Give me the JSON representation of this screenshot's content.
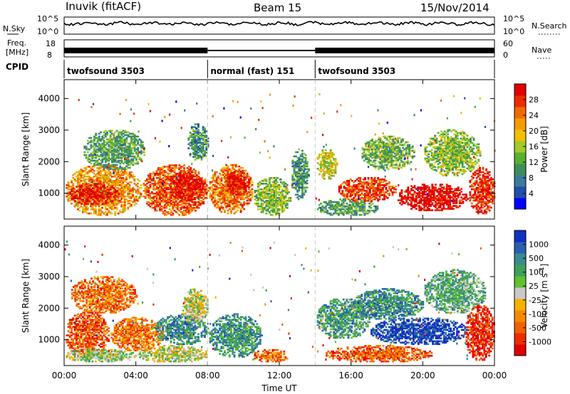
{
  "header": {
    "station": "Inuvik (fitACF)",
    "beam": "Beam 15",
    "date": "15/Nov/2014"
  },
  "status_panels": {
    "nsky_label": "N.Sky",
    "nsearch_label": "N.Search",
    "freq_label_line1": "Freq.",
    "freq_label_line2": "[MHz]",
    "nave_label": "Nave",
    "cpid_label": "CPID",
    "nsky_ticks": [
      "10^5",
      "10^0"
    ],
    "nsearch_ticks": [
      "10^5",
      "10^0"
    ],
    "freq_ticks": [
      "18",
      "8"
    ],
    "nave_ticks": [
      "60",
      "0"
    ],
    "cpid_segments": [
      {
        "label": "twofsound 3503",
        "start": 0,
        "end": 8.0
      },
      {
        "label": "normal (fast) 151",
        "start": 8.0,
        "end": 14.0
      },
      {
        "label": "twofsound 3503",
        "start": 14.0,
        "end": 24.0
      }
    ]
  },
  "chart_data": [
    {
      "type": "heatmap",
      "title": "",
      "xlabel": "",
      "ylabel": "Slant Range [km]",
      "xlim": [
        0,
        24
      ],
      "ylim": [
        180,
        4600
      ],
      "yticks": [
        1000,
        2000,
        3000,
        4000
      ],
      "colorbar": {
        "label": "Power [dB]",
        "ticks": [
          "4",
          "8",
          "12",
          "16",
          "20",
          "24",
          "28"
        ],
        "colors": [
          "#0000ff",
          "#1f4fa8",
          "#3a7a9e",
          "#3c8f5a",
          "#57b02f",
          "#a3c82a",
          "#f0c000",
          "#f59a00",
          "#f06a00",
          "#ee2a00",
          "#e00000"
        ]
      },
      "regions": [
        {
          "x0": 0.0,
          "x1": 4.3,
          "y0": 250,
          "y1": 1900,
          "level": 0.7
        },
        {
          "x0": 0.2,
          "x1": 3.0,
          "y0": 600,
          "y1": 1300,
          "level": 0.95
        },
        {
          "x0": 1.0,
          "x1": 4.5,
          "y0": 1700,
          "y1": 3000,
          "level": 0.35
        },
        {
          "x0": 4.3,
          "x1": 8.0,
          "y0": 250,
          "y1": 1900,
          "level": 0.8
        },
        {
          "x0": 5.8,
          "x1": 7.8,
          "y0": 700,
          "y1": 1700,
          "level": 0.95
        },
        {
          "x0": 6.8,
          "x1": 8.0,
          "y0": 2000,
          "y1": 3200,
          "level": 0.3
        },
        {
          "x0": 8.0,
          "x1": 10.5,
          "y0": 300,
          "y1": 1900,
          "level": 0.75
        },
        {
          "x0": 9.0,
          "x1": 10.3,
          "y0": 900,
          "y1": 1700,
          "level": 0.95
        },
        {
          "x0": 10.5,
          "x1": 12.6,
          "y0": 250,
          "y1": 1500,
          "level": 0.45
        },
        {
          "x0": 12.6,
          "x1": 13.6,
          "y0": 800,
          "y1": 2400,
          "level": 0.3
        },
        {
          "x0": 14.0,
          "x1": 15.2,
          "y0": 1400,
          "y1": 2400,
          "level": 0.55
        },
        {
          "x0": 14.0,
          "x1": 17.5,
          "y0": 250,
          "y1": 800,
          "level": 0.35
        },
        {
          "x0": 15.2,
          "x1": 18.5,
          "y0": 700,
          "y1": 1500,
          "level": 0.85
        },
        {
          "x0": 16.5,
          "x1": 19.5,
          "y0": 1700,
          "y1": 2800,
          "level": 0.4
        },
        {
          "x0": 18.5,
          "x1": 22.5,
          "y0": 400,
          "y1": 1300,
          "level": 0.98
        },
        {
          "x0": 20.0,
          "x1": 23.2,
          "y0": 1500,
          "y1": 3000,
          "level": 0.45
        },
        {
          "x0": 22.5,
          "x1": 24.0,
          "y0": 300,
          "y1": 1800,
          "level": 0.9
        }
      ]
    },
    {
      "type": "heatmap",
      "title": "",
      "xlabel": "Time UT",
      "ylabel": "Slant Range [km]",
      "xlim": [
        0,
        24
      ],
      "ylim": [
        180,
        4600
      ],
      "xticks": [
        "00:00",
        "04:00",
        "08:00",
        "12:00",
        "16:00",
        "20:00",
        "00:00"
      ],
      "yticks": [
        1000,
        2000,
        3000,
        4000
      ],
      "colorbar": {
        "label": "Velocity [m s^-1]",
        "ticks": [
          "1000",
          "500",
          "100",
          "25",
          "-25",
          "-100",
          "-500",
          "-1000"
        ],
        "colors": [
          "#1030c0",
          "#2a5fb0",
          "#3a8a90",
          "#3fa05a",
          "#60c030",
          "#c8c8c8",
          "#f5b000",
          "#f58a00",
          "#f06000",
          "#ee2a00",
          "#e00000"
        ]
      },
      "regions": [
        {
          "x0": 0.0,
          "x1": 2.5,
          "y0": 400,
          "y1": 1900,
          "level": 0.8
        },
        {
          "x0": 0.3,
          "x1": 4.0,
          "y0": 1800,
          "y1": 3000,
          "level": 0.75
        },
        {
          "x0": 0.0,
          "x1": 4.0,
          "y0": 250,
          "y1": 700,
          "level": 0.45
        },
        {
          "x0": 2.5,
          "x1": 5.5,
          "y0": 600,
          "y1": 1700,
          "level": 0.72
        },
        {
          "x0": 5.0,
          "x1": 8.0,
          "y0": 800,
          "y1": 1800,
          "level": 0.25
        },
        {
          "x0": 6.5,
          "x1": 8.0,
          "y0": 1500,
          "y1": 2600,
          "level": 0.5
        },
        {
          "x0": 4.0,
          "x1": 8.0,
          "y0": 250,
          "y1": 800,
          "level": 0.5
        },
        {
          "x0": 8.0,
          "x1": 11.0,
          "y0": 400,
          "y1": 1800,
          "level": 0.28
        },
        {
          "x0": 10.5,
          "x1": 12.5,
          "y0": 250,
          "y1": 700,
          "level": 0.75
        },
        {
          "x0": 14.0,
          "x1": 17.0,
          "y0": 1000,
          "y1": 2300,
          "level": 0.3
        },
        {
          "x0": 14.5,
          "x1": 20.5,
          "y0": 250,
          "y1": 800,
          "level": 0.78
        },
        {
          "x0": 17.0,
          "x1": 22.5,
          "y0": 800,
          "y1": 1700,
          "level": 0.05
        },
        {
          "x0": 16.0,
          "x1": 20.0,
          "y0": 1600,
          "y1": 2600,
          "level": 0.25
        },
        {
          "x0": 20.0,
          "x1": 23.5,
          "y0": 1800,
          "y1": 3200,
          "level": 0.35
        },
        {
          "x0": 22.3,
          "x1": 24.0,
          "y0": 300,
          "y1": 2100,
          "level": 0.9
        }
      ]
    }
  ]
}
